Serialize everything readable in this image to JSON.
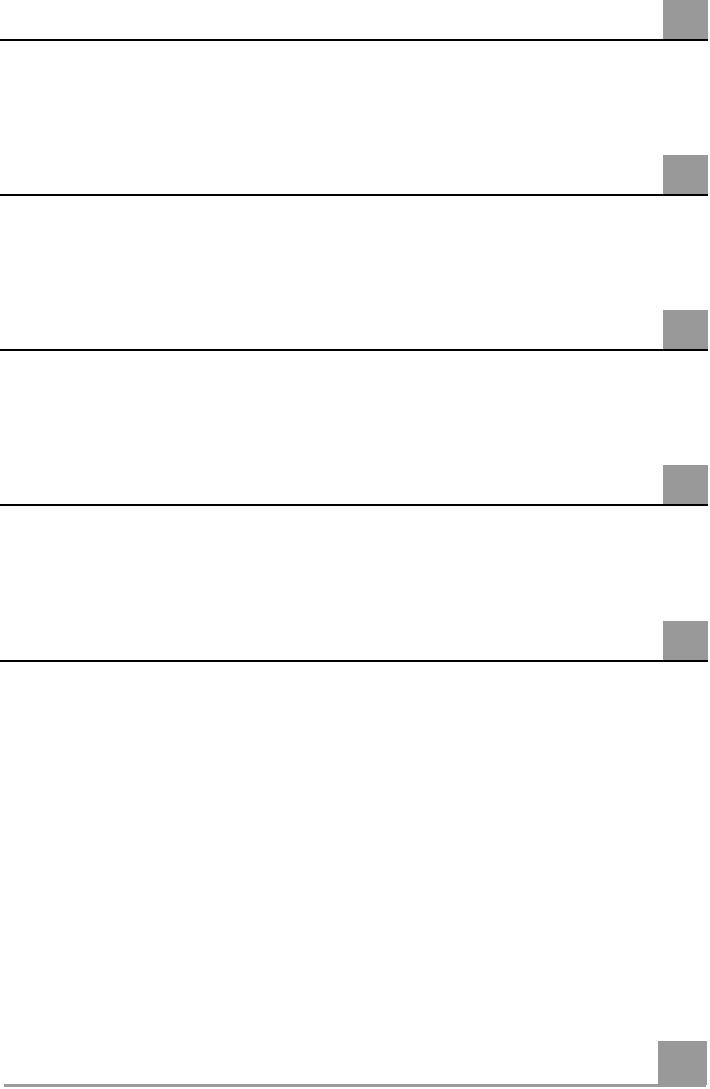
{
  "page": {
    "tab_color": "#999999",
    "rule_color": "#000000",
    "section_count": 5
  }
}
